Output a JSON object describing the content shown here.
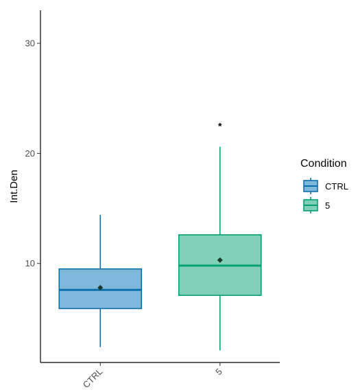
{
  "chart_data": {
    "type": "box",
    "title": "",
    "xlabel": "",
    "ylabel": "Int.Den",
    "ylim": [
      1,
      33
    ],
    "yticks": [
      10,
      20,
      30
    ],
    "categories": [
      "CTRL",
      "5"
    ],
    "grid": false,
    "legend": {
      "title": "Condition",
      "placement": "right",
      "entries": [
        "CTRL",
        "5"
      ]
    },
    "series": [
      {
        "category": "CTRL",
        "min": 2.4,
        "q1": 5.9,
        "median": 7.6,
        "q3": 9.5,
        "max": 14.4,
        "mean": 7.8,
        "fill": "#7fb8da",
        "stroke": "#0b6fab"
      },
      {
        "category": "5",
        "min": 2.1,
        "q1": 7.1,
        "median": 9.8,
        "q3": 12.6,
        "max": 20.6,
        "mean": 10.3,
        "fill": "#7fd0b6",
        "stroke": "#00a070"
      }
    ],
    "annotations": [
      {
        "text": "*",
        "category": "5",
        "y": 22.5
      }
    ]
  }
}
